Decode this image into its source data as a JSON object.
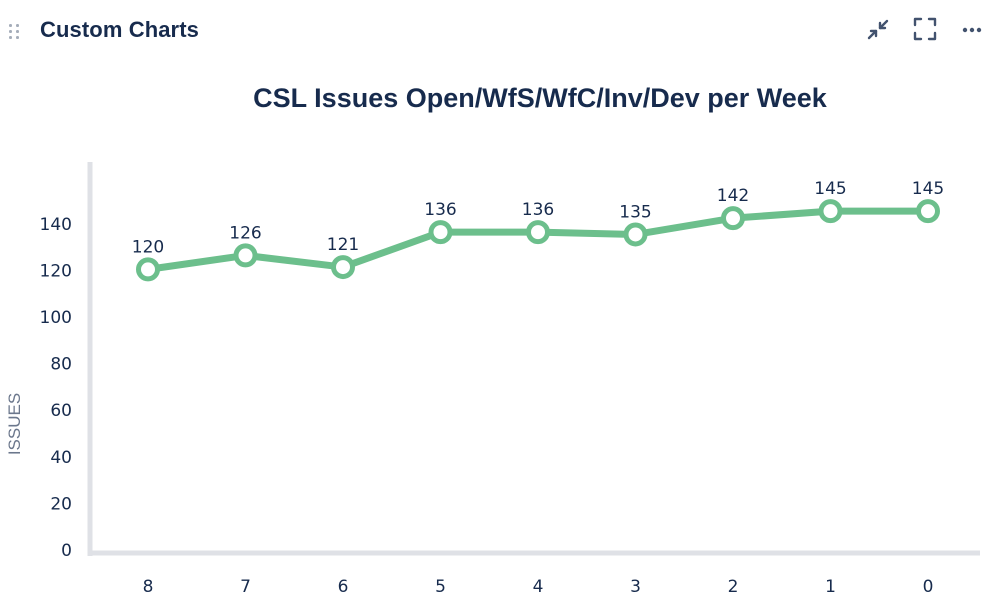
{
  "header": {
    "title": "Custom Charts",
    "icons": [
      "drag-handle-icon",
      "minimize-icon",
      "fullscreen-icon",
      "more-icon"
    ]
  },
  "chart_data": {
    "type": "line",
    "title": "CSL Issues Open/WfS/WfC/Inv/Dev per Week",
    "xlabel": "",
    "ylabel": "ISSUES",
    "categories": [
      "8",
      "7",
      "6",
      "5",
      "4",
      "3",
      "2",
      "1",
      "0"
    ],
    "series": [
      {
        "values": [
          120,
          126,
          121,
          136,
          136,
          135,
          142,
          145,
          145
        ]
      }
    ],
    "data_labels": [
      "120",
      "126",
      "121",
      "136",
      "136",
      "135",
      "142",
      "145",
      "145"
    ],
    "yticks": [
      0,
      20,
      40,
      60,
      80,
      100,
      120,
      140
    ],
    "ylim": [
      0,
      145
    ],
    "grid": false,
    "colors": {
      "line": "#6cbf8c",
      "marker_fill": "#ffffff",
      "axis": "#dfe1e6",
      "title": "#172b4d",
      "text": "#172b4d",
      "ylabel": "#6b778c"
    }
  }
}
